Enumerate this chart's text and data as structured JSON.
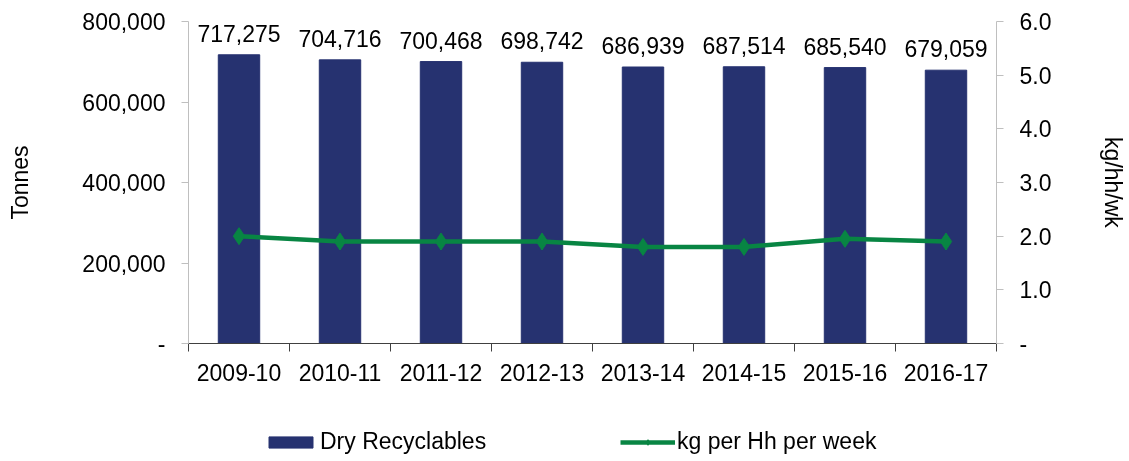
{
  "chart_data": {
    "type": "bar",
    "categories": [
      "2009-10",
      "2010-11",
      "2011-12",
      "2012-13",
      "2013-14",
      "2014-15",
      "2015-16",
      "2016-17"
    ],
    "ylabel": "Tonnes",
    "y2label": "kg/hh/wk",
    "ylim": [
      0,
      800000
    ],
    "yticks": [
      {
        "value": 0,
        "label": "-"
      },
      {
        "value": 200000,
        "label": "200,000"
      },
      {
        "value": 400000,
        "label": "400,000"
      },
      {
        "value": 600000,
        "label": "600,000"
      },
      {
        "value": 800000,
        "label": "800,000"
      }
    ],
    "y2lim": [
      0,
      6
    ],
    "y2ticks": [
      {
        "value": 0,
        "label": "-"
      },
      {
        "value": 1,
        "label": "1.0"
      },
      {
        "value": 2,
        "label": "2.0"
      },
      {
        "value": 3,
        "label": "3.0"
      },
      {
        "value": 4,
        "label": "4.0"
      },
      {
        "value": 5,
        "label": "5.0"
      },
      {
        "value": 6,
        "label": "6.0"
      }
    ],
    "series": [
      {
        "name": "Dry Recyclables",
        "color": "#263270",
        "values": [
          717275,
          704716,
          700468,
          698742,
          686939,
          687514,
          685540,
          679059
        ],
        "value_labels": [
          "717,275",
          "704,716",
          "700,468",
          "698,742",
          "686,939",
          "687,514",
          "685,540",
          "679,059"
        ]
      },
      {
        "name": "kg per Hh per week",
        "type": "line",
        "axis": "y2",
        "color": "#088543",
        "marker": "diamond",
        "line_style": "solid",
        "values": [
          2.0,
          1.9,
          1.9,
          1.9,
          1.8,
          1.8,
          1.95,
          1.9
        ]
      }
    ],
    "grid": false,
    "legend": "bottom"
  }
}
